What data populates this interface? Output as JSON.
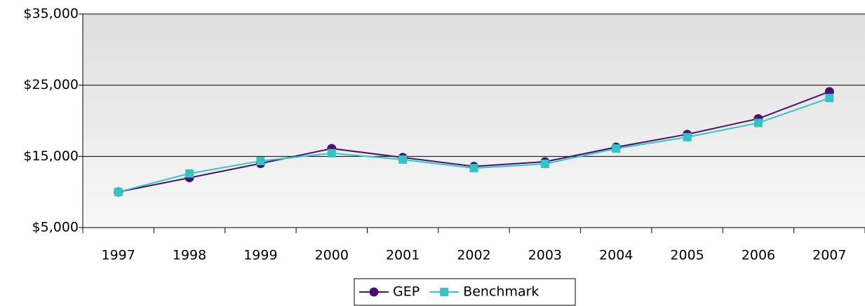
{
  "chart_data": {
    "type": "line",
    "categories": [
      "1997",
      "1998",
      "1999",
      "2000",
      "2001",
      "2002",
      "2003",
      "2004",
      "2005",
      "2006",
      "2007"
    ],
    "series": [
      {
        "name": "GEP",
        "color": "#4b0f73",
        "marker": "circle",
        "values": [
          10000,
          12000,
          14000,
          16100,
          14850,
          13600,
          14250,
          16300,
          18100,
          20300,
          24100
        ]
      },
      {
        "name": "Benchmark",
        "color": "#33c4c8",
        "marker": "square",
        "values": [
          10000,
          12600,
          14350,
          15450,
          14550,
          13350,
          13950,
          16100,
          17700,
          19700,
          23200
        ]
      }
    ],
    "ylim": [
      5000,
      35000
    ],
    "yticks": [
      {
        "value": 5000,
        "label": "$5,000"
      },
      {
        "value": 15000,
        "label": "$15,000"
      },
      {
        "value": 25000,
        "label": "$25,000"
      },
      {
        "value": 35000,
        "label": "$35,000"
      }
    ],
    "grid": true,
    "legend": "bottom"
  }
}
